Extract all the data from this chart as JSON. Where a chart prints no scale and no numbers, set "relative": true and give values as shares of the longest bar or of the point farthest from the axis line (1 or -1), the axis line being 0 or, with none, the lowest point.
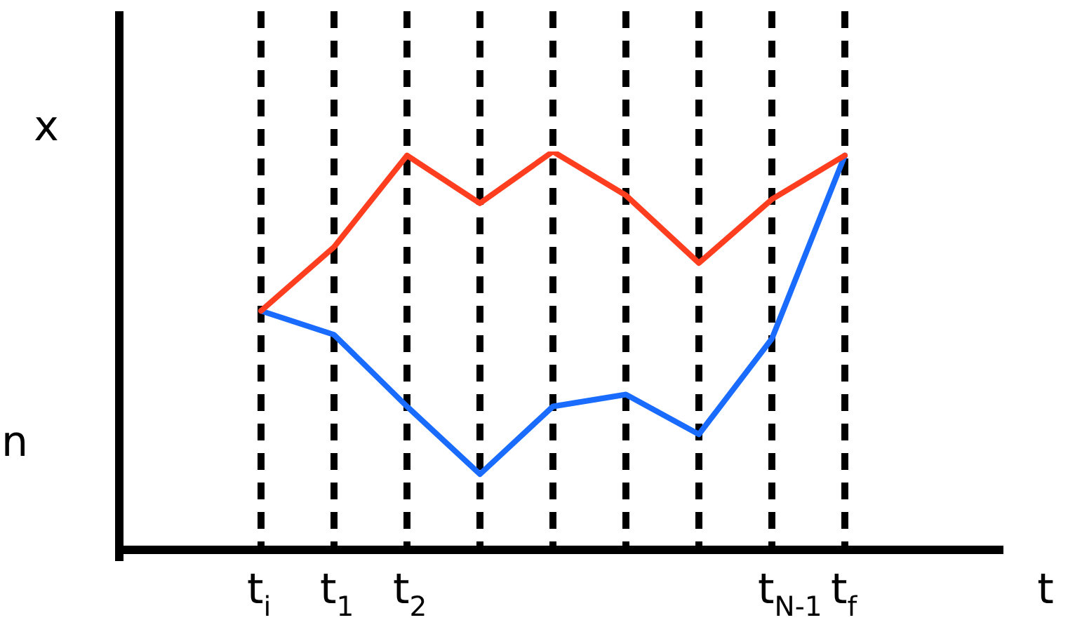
{
  "chart_data": {
    "type": "line",
    "relative": true,
    "xlabel": "t",
    "ylabel": "x",
    "annotations": [
      "n"
    ],
    "categories": [
      "t$_{i}$",
      "t$_{1}$",
      "t$_{2}$",
      null,
      null,
      null,
      null,
      "t$_{N-1}$",
      "t$_{f}$"
    ],
    "series": [
      {
        "color": "#ff3d1f",
        "values": [
          0.6,
          0.76,
          0.99,
          0.87,
          1,
          0.89,
          0.72,
          0.88,
          0.99
        ]
      },
      {
        "color": "#1a6bff",
        "values": [
          0.6,
          0.54,
          0.36,
          0.19,
          0.36,
          0.39,
          0.29,
          0.53,
          0.99
        ]
      }
    ],
    "grid": "x",
    "legend": false,
    "marker": "none",
    "line_style": "solid"
  }
}
